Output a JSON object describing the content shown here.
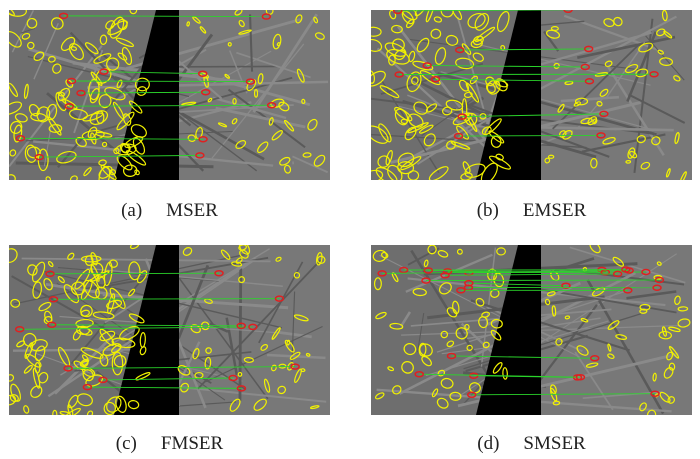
{
  "figure": {
    "panels": [
      {
        "label": "(a)",
        "method": "MSER"
      },
      {
        "label": "(b)",
        "method": "EMSER"
      },
      {
        "label": "(c)",
        "method": "FMSER"
      },
      {
        "label": "(d)",
        "method": "SMSER"
      }
    ]
  }
}
